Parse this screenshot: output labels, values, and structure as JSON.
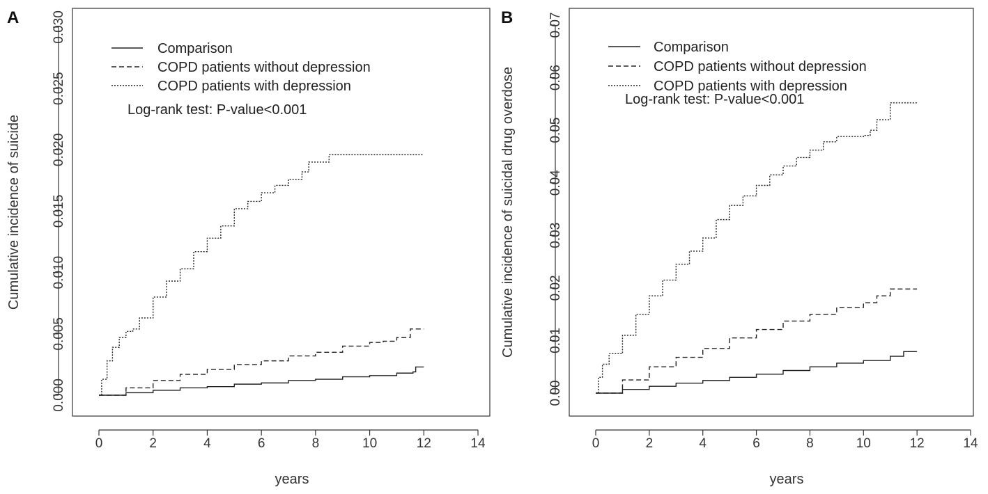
{
  "chart_data": [
    {
      "type": "line",
      "panel_label": "A",
      "xlabel": "years",
      "ylabel": "Cumulative incidence of suicide",
      "xlim": [
        0,
        14
      ],
      "ylim": [
        0,
        0.03
      ],
      "x_ticks": [
        "0",
        "2",
        "4",
        "6",
        "8",
        "10",
        "12",
        "14"
      ],
      "y_ticks": [
        "0.000",
        "0.005",
        "0.010",
        "0.015",
        "0.020",
        "0.025",
        "0.030"
      ],
      "annotation": "Log-rank test: P-value<0.001",
      "legend_position": "top-left",
      "series": [
        {
          "name": "Comparison",
          "style": "solid",
          "x": [
            0,
            1,
            2,
            3,
            4,
            5,
            6,
            7,
            8,
            9,
            10,
            11,
            11.6,
            11.7,
            12
          ],
          "y": [
            0,
            0.0002,
            0.0004,
            0.0006,
            0.0007,
            0.0009,
            0.001,
            0.0012,
            0.0013,
            0.0015,
            0.0016,
            0.0018,
            0.0019,
            0.0023,
            0.0023
          ]
        },
        {
          "name": "COPD patients without depression",
          "style": "dashed",
          "x": [
            0,
            1,
            2,
            3,
            4,
            5,
            6,
            7,
            8,
            9,
            10,
            10.5,
            11,
            11.5,
            12
          ],
          "y": [
            0,
            0.0006,
            0.0012,
            0.0017,
            0.0021,
            0.0025,
            0.0028,
            0.0032,
            0.0035,
            0.004,
            0.0043,
            0.0044,
            0.0047,
            0.0054,
            0.0054
          ]
        },
        {
          "name": "COPD patients with depression",
          "style": "dotted",
          "x": [
            0,
            0.1,
            0.3,
            0.5,
            0.75,
            1.0,
            1.25,
            1.5,
            2.0,
            2.5,
            3.0,
            3.5,
            4.0,
            4.5,
            5.0,
            5.5,
            6.0,
            6.5,
            7.0,
            7.5,
            7.75,
            8.0,
            8.5,
            9.0,
            10.0,
            11.0,
            12.0
          ],
          "y": [
            0,
            0.0013,
            0.0028,
            0.0039,
            0.0047,
            0.0052,
            0.0054,
            0.0063,
            0.008,
            0.0093,
            0.0103,
            0.0117,
            0.0128,
            0.0138,
            0.0152,
            0.0158,
            0.0165,
            0.0171,
            0.0176,
            0.0182,
            0.019,
            0.019,
            0.0196,
            0.0196,
            0.0196,
            0.0196,
            0.0196
          ]
        }
      ]
    },
    {
      "type": "line",
      "panel_label": "B",
      "xlabel": "years",
      "ylabel": "Cumulative incidence of suicidal drug overdose",
      "xlim": [
        0,
        14
      ],
      "ylim": [
        0,
        0.07
      ],
      "x_ticks": [
        "0",
        "2",
        "4",
        "6",
        "8",
        "10",
        "12",
        "14"
      ],
      "y_ticks": [
        "0.00",
        "0.01",
        "0.02",
        "0.03",
        "0.04",
        "0.05",
        "0.06",
        "0.07"
      ],
      "annotation": "Log-rank test: P-value<0.001",
      "legend_position": "top-left",
      "series": [
        {
          "name": "Comparison",
          "style": "solid",
          "x": [
            0,
            1,
            2,
            3,
            4,
            5,
            6,
            7,
            8,
            9,
            10,
            11,
            11.5,
            12
          ],
          "y": [
            0,
            0.0007,
            0.0013,
            0.0019,
            0.0024,
            0.003,
            0.0036,
            0.0043,
            0.005,
            0.0057,
            0.0062,
            0.007,
            0.0079,
            0.0079
          ]
        },
        {
          "name": "COPD patients without depression",
          "style": "dashed",
          "x": [
            0,
            1,
            2,
            3,
            4,
            5,
            6,
            7,
            8,
            9,
            10,
            10.5,
            11,
            12
          ],
          "y": [
            0,
            0.0025,
            0.005,
            0.0068,
            0.0085,
            0.0105,
            0.0121,
            0.0137,
            0.015,
            0.0163,
            0.0172,
            0.0185,
            0.0198,
            0.0198
          ]
        },
        {
          "name": "COPD patients with depression",
          "style": "dotted",
          "x": [
            0,
            0.1,
            0.25,
            0.5,
            1.0,
            1.5,
            2.0,
            2.5,
            3.0,
            3.5,
            4.0,
            4.5,
            5.0,
            5.5,
            6.0,
            6.5,
            7.0,
            7.5,
            8.0,
            8.5,
            9.0,
            9.5,
            10.0,
            10.25,
            10.5,
            11.0,
            12.0
          ],
          "y": [
            0,
            0.003,
            0.0055,
            0.0075,
            0.011,
            0.015,
            0.0185,
            0.0215,
            0.0245,
            0.027,
            0.0295,
            0.033,
            0.0357,
            0.0375,
            0.0395,
            0.0415,
            0.0432,
            0.0448,
            0.0462,
            0.0478,
            0.0488,
            0.0488,
            0.049,
            0.05,
            0.052,
            0.0552,
            0.0552
          ]
        }
      ]
    }
  ]
}
